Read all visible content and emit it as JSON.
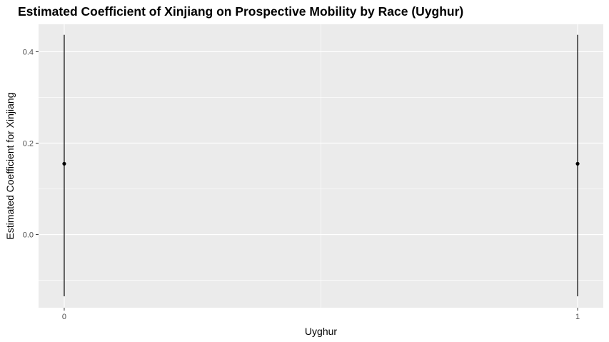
{
  "chart_data": {
    "type": "scatter",
    "title": "Estimated Coefficient of Xinjiang on Prospective Mobility by Race (Uyghur)",
    "xlabel": "Uyghur",
    "ylabel": "Estimated Coefficient for Xinjiang",
    "x_ticks": [
      "0",
      "1"
    ],
    "y_ticks": [
      "0.0",
      "0.2",
      "0.4"
    ],
    "xlim": [
      -0.05,
      1.05
    ],
    "ylim": [
      -0.16,
      0.46
    ],
    "grid": true,
    "points": [
      {
        "x": 0,
        "y": 0.155,
        "ymin": -0.135,
        "ymax": 0.437
      },
      {
        "x": 1,
        "y": 0.155,
        "ymin": -0.135,
        "ymax": 0.437
      }
    ],
    "colors": {
      "panel": "#ebebeb",
      "grid": "#ffffff",
      "mark": "#000000"
    }
  }
}
